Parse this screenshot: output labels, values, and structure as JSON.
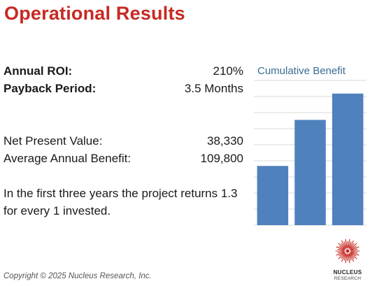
{
  "header": {
    "title": "Operational Results"
  },
  "metrics": [
    {
      "label": "Annual ROI:",
      "value": "210%"
    },
    {
      "label": "Payback Period:",
      "value": "3.5 Months"
    },
    {
      "label": "Net Present Value:",
      "value": "38,330"
    },
    {
      "label": "Average Annual Benefit:",
      "value": "109,800"
    }
  ],
  "note": {
    "text": "In the first three years the project returns 1.3 for every 1 invested."
  },
  "chart_data": {
    "type": "bar",
    "title": "Cumulative Benefit",
    "categories": [
      "",
      "",
      ""
    ],
    "values": [
      45,
      80,
      100
    ],
    "ylim": [
      0,
      110
    ],
    "grid": true,
    "legend": "none",
    "bar_color": "#4f81bd"
  },
  "footer": {
    "copyright": "Copyright © 2025 Nucleus Research, Inc."
  },
  "logo": {
    "line1": "NUCLEUS",
    "line2": "RESEARCH",
    "color": "#c62a23"
  }
}
